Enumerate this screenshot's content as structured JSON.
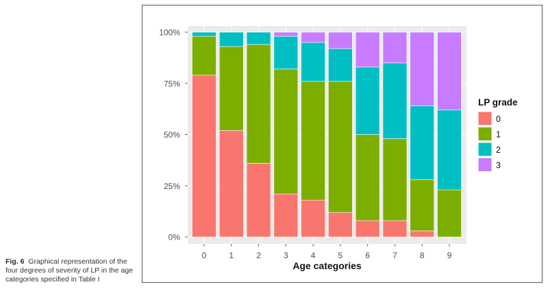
{
  "caption": {
    "label": "Fig. 6",
    "text": "Graphical representation of the four degrees of severity of LP in the age categories specified in Table I"
  },
  "chart_data": {
    "type": "bar",
    "stacked": true,
    "normalized": true,
    "categories": [
      "0",
      "1",
      "2",
      "3",
      "4",
      "5",
      "6",
      "7",
      "8",
      "9"
    ],
    "xlabel": "Age categories",
    "ylabel": "",
    "ylim": [
      0,
      100
    ],
    "y_ticks": [
      "0%",
      "25%",
      "50%",
      "75%",
      "100%"
    ],
    "legend_title": "LP grade",
    "legend_position": "right",
    "grid": true,
    "series": [
      {
        "name": "0",
        "color": "#F8766D",
        "values": [
          79,
          52,
          36,
          21,
          18,
          12,
          8,
          8,
          3,
          0
        ]
      },
      {
        "name": "1",
        "color": "#7CAE00",
        "values": [
          19,
          41,
          58,
          61,
          58,
          64,
          42,
          40,
          25,
          23
        ]
      },
      {
        "name": "2",
        "color": "#00BFC4",
        "values": [
          2,
          7,
          6,
          16,
          19,
          16,
          33,
          37,
          36,
          39
        ]
      },
      {
        "name": "3",
        "color": "#C77CFF",
        "values": [
          0,
          0,
          0,
          2,
          5,
          8,
          17,
          15,
          36,
          38
        ]
      }
    ],
    "colors": {
      "panel_background": "#EBEBEB",
      "gridline": "#FFFFFF"
    }
  }
}
